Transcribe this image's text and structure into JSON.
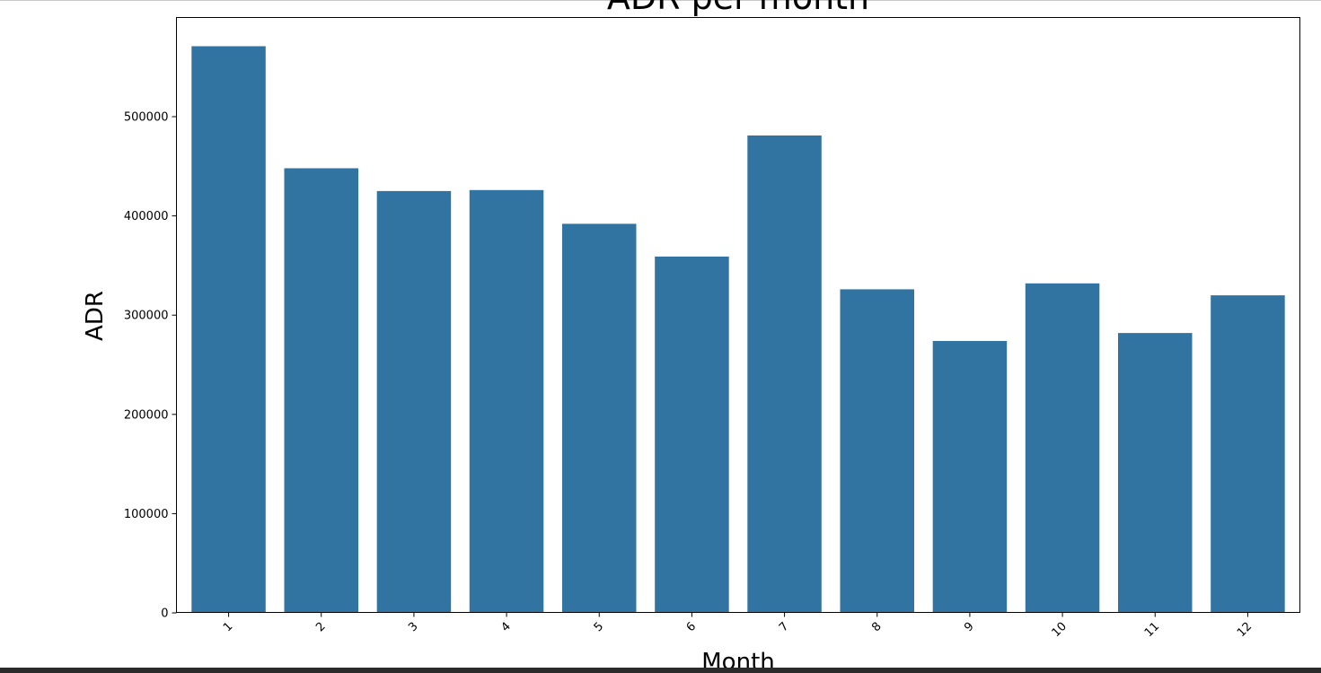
{
  "colors": {
    "bar": "#3274a1",
    "axis": "#000000",
    "background": "#ffffff"
  },
  "chart_data": {
    "type": "bar",
    "title": "ADR per month",
    "xlabel": "Month",
    "ylabel": "ADR",
    "categories": [
      "1",
      "2",
      "3",
      "4",
      "5",
      "6",
      "7",
      "8",
      "9",
      "10",
      "11",
      "12"
    ],
    "values": [
      571000,
      448000,
      425000,
      426000,
      392000,
      359000,
      481000,
      326000,
      274000,
      332000,
      282000,
      320000
    ],
    "ylim": [
      0,
      600000
    ],
    "yticks": [
      0,
      100000,
      200000,
      300000,
      400000,
      500000
    ],
    "ytick_labels": [
      "0",
      "100000",
      "200000",
      "300000",
      "400000",
      "500000"
    ],
    "grid": false,
    "xtick_rotation": 45
  }
}
